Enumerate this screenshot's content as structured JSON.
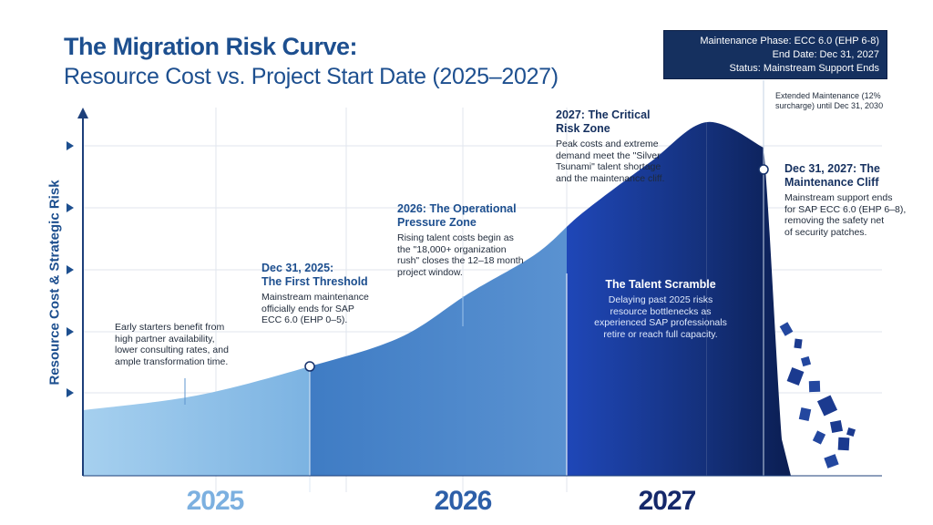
{
  "title": {
    "line1": "The Migration Risk Curve:",
    "line2": "Resource Cost vs. Project Start Date (2025–2027)"
  },
  "y_axis_label": "Resource Cost & Strategic Risk",
  "info_box": {
    "line1": "Maintenance Phase: ECC 6.0 (EHP 6-8)",
    "line2": "End Date: Dec 31, 2027",
    "line3": "Status: Mainstream Support Ends"
  },
  "annotations": {
    "early": {
      "body": "Early starters benefit from\nhigh partner availability,\nlower consulting rates, and\nample transformation time."
    },
    "threshold": {
      "heading": "Dec 31, 2025:\nThe First Threshold",
      "body": "Mainstream maintenance\nofficially ends for SAP\nECC 6.0 (EHP 0–5)."
    },
    "pressure": {
      "heading": "2026: The Operational\nPressure Zone",
      "body": "Rising talent costs begin as\nthe \"18,000+ organization\nrush\" closes the 12–18 month\nproject window."
    },
    "critical": {
      "heading": "2027: The Critical\nRisk Zone",
      "body": "Peak costs and extreme\ndemand meet the \"Silver\nTsunami\" talent shortage\nand the maintenance cliff."
    },
    "scramble": {
      "heading": "The Talent Scramble",
      "body": "Delaying past 2025 risks\nresource bottlenecks as\nexperienced SAP professionals\nretire or reach full capacity."
    },
    "cliff": {
      "heading": "Dec 31, 2027: The\nMaintenance Cliff",
      "body": "Mainstream support ends\nfor SAP ECC 6.0 (EHP 6–8),\nremoving the safety net\nof security patches."
    },
    "extended": {
      "body": "Extended Maintenance (12%\nsurcharge) until Dec 31, 2030"
    }
  },
  "chart_data": {
    "type": "area",
    "title": "The Migration Risk Curve: Resource Cost vs. Project Start Date (2025–2027)",
    "xlabel": "",
    "ylabel": "Resource Cost & Strategic Risk",
    "x_categories": [
      "2025",
      "2026",
      "2027"
    ],
    "curve": {
      "x": [
        2025.0,
        2025.5,
        2026.0,
        2026.4,
        2026.7,
        2027.0,
        2027.2,
        2027.5,
        2027.75,
        2028.0
      ],
      "y": [
        0.18,
        0.22,
        0.3,
        0.38,
        0.5,
        0.61,
        0.72,
        0.86,
        0.97,
        0.9
      ]
    },
    "markers": [
      {
        "x": 2026.0,
        "label": "Dec 31, 2025"
      },
      {
        "x": 2028.0,
        "label": "Dec 31, 2027"
      }
    ],
    "zones": [
      {
        "name": "2025",
        "color": "#8fc0e6"
      },
      {
        "name": "2026",
        "color": "#4a86c9"
      },
      {
        "name": "2027",
        "color": "#1f3f9e"
      }
    ],
    "grid": true,
    "legend": "none"
  },
  "colors": {
    "title": "#1d4f8f",
    "info_box": "#15305f",
    "zone_light": "#8fc0e6",
    "zone_mid": "#4a86c9",
    "zone_dark": "#1f3f9e",
    "zone_deep": "#132e6e"
  }
}
